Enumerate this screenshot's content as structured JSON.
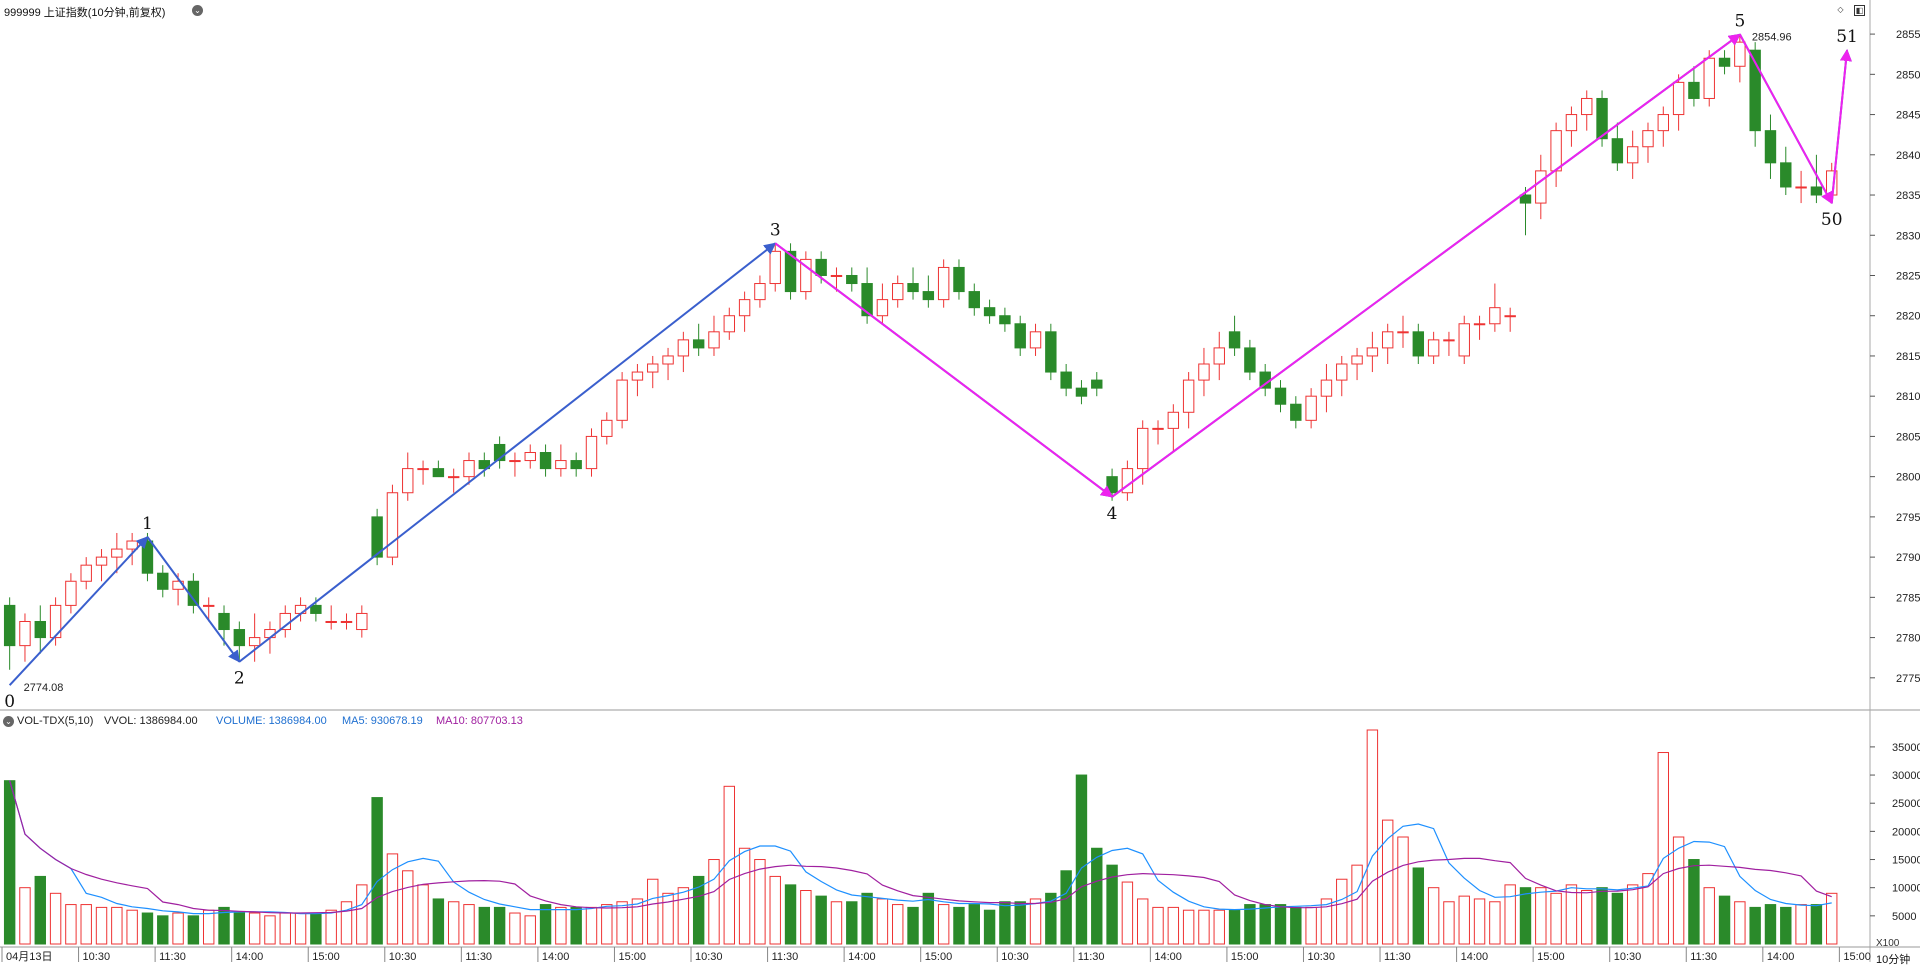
{
  "header": {
    "title": "999999 上证指数(10分钟,前复权)",
    "vol_indicator": "VOL-TDX(5,10)",
    "vvol": "VVOL: 1386984.00",
    "volume": "VOLUME: 1386984.00",
    "ma5": "MA5: 930678.19",
    "ma10": "MA10: 807703.13"
  },
  "footer": {
    "period": "10分钟",
    "unit": "X100"
  },
  "colors": {
    "up": "#ee3333",
    "down": "#2a8a2a",
    "blue_line": "#3a5fcd",
    "magenta_line": "#ee22ee",
    "ma5": "#1e90ff",
    "ma10": "#a020a0"
  },
  "chart_data": [
    {
      "type": "candlestick",
      "title": "999999 上证指数(10分钟,前复权)",
      "ylim": [
        2771,
        2857
      ],
      "yticks": [
        2775,
        2780,
        2785,
        2790,
        2795,
        2800,
        2805,
        2810,
        2815,
        2820,
        2825,
        2830,
        2835,
        2840,
        2845,
        2850,
        2855
      ],
      "xticks": [
        {
          "i": 0,
          "label": "04月13日"
        },
        {
          "i": 5,
          "label": "10:30"
        },
        {
          "i": 10,
          "label": "11:30"
        },
        {
          "i": 15,
          "label": "14:00"
        },
        {
          "i": 20,
          "label": "15:00"
        },
        {
          "i": 25,
          "label": "10:30"
        },
        {
          "i": 30,
          "label": "11:30"
        },
        {
          "i": 35,
          "label": "14:00"
        },
        {
          "i": 40,
          "label": "15:00"
        },
        {
          "i": 45,
          "label": "10:30"
        },
        {
          "i": 50,
          "label": "11:30"
        },
        {
          "i": 55,
          "label": "14:00"
        },
        {
          "i": 60,
          "label": "15:00"
        },
        {
          "i": 65,
          "label": "10:30"
        },
        {
          "i": 70,
          "label": "11:30"
        },
        {
          "i": 75,
          "label": "14:00"
        },
        {
          "i": 80,
          "label": "15:00"
        },
        {
          "i": 85,
          "label": "10:30"
        },
        {
          "i": 90,
          "label": "11:30"
        },
        {
          "i": 95,
          "label": "14:00"
        },
        {
          "i": 100,
          "label": "15:00"
        },
        {
          "i": 105,
          "label": "10:30"
        },
        {
          "i": 110,
          "label": "11:30"
        },
        {
          "i": 115,
          "label": "14:00"
        },
        {
          "i": 120,
          "label": "15:00"
        }
      ],
      "x_count": 120,
      "ohlc": [
        [
          2784,
          2785,
          2776,
          2779
        ],
        [
          2779,
          2783,
          2777,
          2782
        ],
        [
          2782,
          2784,
          2778,
          2780
        ],
        [
          2780,
          2785,
          2779,
          2784
        ],
        [
          2784,
          2788,
          2783,
          2787
        ],
        [
          2787,
          2790,
          2786,
          2789
        ],
        [
          2789,
          2791,
          2787,
          2790
        ],
        [
          2790,
          2793,
          2788,
          2791
        ],
        [
          2791,
          2793,
          2789,
          2792
        ],
        [
          2792,
          2793,
          2787,
          2788
        ],
        [
          2788,
          2789,
          2785,
          2786
        ],
        [
          2786,
          2788,
          2784,
          2787
        ],
        [
          2787,
          2788,
          2783,
          2784
        ],
        [
          2784,
          2785,
          2782,
          2784
        ],
        [
          2783,
          2784,
          2779,
          2781
        ],
        [
          2781,
          2782,
          2777,
          2779
        ],
        [
          2779,
          2783,
          2777,
          2780
        ],
        [
          2780,
          2782,
          2778,
          2781
        ],
        [
          2781,
          2784,
          2780,
          2783
        ],
        [
          2783,
          2785,
          2782,
          2784
        ],
        [
          2784,
          2785,
          2782,
          2783
        ],
        [
          2782,
          2784,
          2781,
          2782
        ],
        [
          2782,
          2783,
          2781,
          2782
        ],
        [
          2781,
          2784,
          2780,
          2783
        ],
        [
          2795,
          2796,
          2789,
          2790
        ],
        [
          2790,
          2799,
          2789,
          2798
        ],
        [
          2798,
          2803,
          2797,
          2801
        ],
        [
          2801,
          2802,
          2799,
          2801
        ],
        [
          2801,
          2802,
          2800,
          2800
        ],
        [
          2800,
          2801,
          2798,
          2800
        ],
        [
          2800,
          2803,
          2799,
          2802
        ],
        [
          2802,
          2803,
          2800,
          2801
        ],
        [
          2804,
          2805,
          2801,
          2802
        ],
        [
          2802,
          2803,
          2800,
          2802
        ],
        [
          2802,
          2804,
          2801,
          2803
        ],
        [
          2803,
          2804,
          2800,
          2801
        ],
        [
          2801,
          2804,
          2800,
          2802
        ],
        [
          2802,
          2803,
          2800,
          2801
        ],
        [
          2801,
          2806,
          2800,
          2805
        ],
        [
          2805,
          2808,
          2804,
          2807
        ],
        [
          2807,
          2813,
          2806,
          2812
        ],
        [
          2812,
          2814,
          2810,
          2813
        ],
        [
          2813,
          2815,
          2811,
          2814
        ],
        [
          2814,
          2816,
          2812,
          2815
        ],
        [
          2815,
          2818,
          2813,
          2817
        ],
        [
          2817,
          2819,
          2815,
          2816
        ],
        [
          2816,
          2820,
          2815,
          2818
        ],
        [
          2818,
          2821,
          2817,
          2820
        ],
        [
          2820,
          2823,
          2818,
          2822
        ],
        [
          2822,
          2825,
          2821,
          2824
        ],
        [
          2824,
          2829,
          2823,
          2828
        ],
        [
          2828,
          2829,
          2822,
          2823
        ],
        [
          2823,
          2828,
          2822,
          2827
        ],
        [
          2827,
          2828,
          2824,
          2825
        ],
        [
          2825,
          2826,
          2823,
          2825
        ],
        [
          2825,
          2826,
          2823,
          2824
        ],
        [
          2824,
          2826,
          2819,
          2820
        ],
        [
          2820,
          2824,
          2819,
          2822
        ],
        [
          2822,
          2825,
          2821,
          2824
        ],
        [
          2824,
          2826,
          2822,
          2823
        ],
        [
          2823,
          2825,
          2821,
          2822
        ],
        [
          2822,
          2827,
          2821,
          2826
        ],
        [
          2826,
          2827,
          2822,
          2823
        ],
        [
          2823,
          2824,
          2820,
          2821
        ],
        [
          2821,
          2822,
          2819,
          2820
        ],
        [
          2820,
          2821,
          2818,
          2819
        ],
        [
          2819,
          2820,
          2815,
          2816
        ],
        [
          2816,
          2819,
          2815,
          2818
        ],
        [
          2818,
          2819,
          2812,
          2813
        ],
        [
          2813,
          2814,
          2810,
          2811
        ],
        [
          2811,
          2812,
          2809,
          2810
        ],
        [
          2812,
          2813,
          2810,
          2811
        ],
        [
          2800,
          2801,
          2797,
          2798
        ],
        [
          2798,
          2802,
          2797,
          2801
        ],
        [
          2801,
          2807,
          2799,
          2806
        ],
        [
          2806,
          2807,
          2804,
          2806
        ],
        [
          2806,
          2809,
          2803,
          2808
        ],
        [
          2808,
          2813,
          2806,
          2812
        ],
        [
          2812,
          2816,
          2810,
          2814
        ],
        [
          2814,
          2818,
          2812,
          2816
        ],
        [
          2818,
          2820,
          2815,
          2816
        ],
        [
          2816,
          2817,
          2812,
          2813
        ],
        [
          2813,
          2814,
          2810,
          2811
        ],
        [
          2811,
          2812,
          2808,
          2809
        ],
        [
          2809,
          2810,
          2806,
          2807
        ],
        [
          2807,
          2811,
          2806,
          2810
        ],
        [
          2810,
          2814,
          2808,
          2812
        ],
        [
          2812,
          2815,
          2810,
          2814
        ],
        [
          2814,
          2816,
          2812,
          2815
        ],
        [
          2815,
          2818,
          2813,
          2816
        ],
        [
          2816,
          2819,
          2814,
          2818
        ],
        [
          2818,
          2820,
          2816,
          2818
        ],
        [
          2818,
          2819,
          2814,
          2815
        ],
        [
          2815,
          2818,
          2814,
          2817
        ],
        [
          2817,
          2818,
          2815,
          2817
        ],
        [
          2815,
          2820,
          2814,
          2819
        ],
        [
          2819,
          2820,
          2817,
          2819
        ],
        [
          2819,
          2824,
          2818,
          2821
        ],
        [
          2820,
          2821,
          2818,
          2820
        ],
        [
          2835,
          2836,
          2830,
          2834
        ],
        [
          2834,
          2840,
          2832,
          2838
        ],
        [
          2838,
          2844,
          2836,
          2843
        ],
        [
          2843,
          2846,
          2841,
          2845
        ],
        [
          2845,
          2848,
          2843,
          2847
        ],
        [
          2847,
          2848,
          2841,
          2842
        ],
        [
          2842,
          2844,
          2838,
          2839
        ],
        [
          2839,
          2843,
          2837,
          2841
        ],
        [
          2841,
          2844,
          2839,
          2843
        ],
        [
          2843,
          2846,
          2841,
          2845
        ],
        [
          2845,
          2850,
          2843,
          2849
        ],
        [
          2849,
          2851,
          2846,
          2847
        ],
        [
          2847,
          2853,
          2846,
          2852
        ],
        [
          2852,
          2853,
          2850,
          2851
        ],
        [
          2851,
          2855,
          2849,
          2854
        ],
        [
          2853,
          2854,
          2841,
          2843
        ],
        [
          2843,
          2845,
          2837,
          2839
        ],
        [
          2839,
          2841,
          2835,
          2836
        ],
        [
          2836,
          2838,
          2834,
          2836
        ],
        [
          2836,
          2840,
          2834,
          2835
        ],
        [
          2835,
          2839,
          2834,
          2838
        ]
      ],
      "annotations": [
        {
          "label": "0",
          "i": 0,
          "price": 2774.08
        },
        {
          "label": "1",
          "i": 9,
          "price": 2792.5
        },
        {
          "label": "2",
          "i": 15,
          "price": 2777
        },
        {
          "label": "3",
          "i": 50,
          "price": 2829
        },
        {
          "label": "4",
          "i": 72,
          "price": 2797.5
        },
        {
          "label": "5",
          "i": 113,
          "price": 2854.96
        },
        {
          "label": "50",
          "i": 119,
          "price": 2834
        },
        {
          "label": "51",
          "i": 120,
          "price": 2853
        }
      ],
      "price_labels": [
        "2774.08",
        "2854.96"
      ]
    },
    {
      "type": "bar",
      "title": "VOL-TDX(5,10)",
      "ylim": [
        0,
        38000
      ],
      "yticks": [
        5000,
        10000,
        15000,
        20000,
        25000,
        30000,
        35000
      ],
      "unit": "X100",
      "volumes": [
        29000,
        10000,
        12000,
        9000,
        7000,
        7000,
        6500,
        6500,
        6000,
        5500,
        5000,
        5500,
        5000,
        6000,
        6500,
        5500,
        5500,
        5000,
        5500,
        5500,
        5500,
        6000,
        7500,
        10500,
        26000,
        16000,
        13000,
        10500,
        8000,
        7500,
        7000,
        6500,
        6500,
        5500,
        5000,
        7000,
        6500,
        6500,
        6500,
        7000,
        7500,
        8000,
        11500,
        9000,
        10000,
        12000,
        15000,
        28000,
        17000,
        15000,
        12000,
        10500,
        9500,
        8500,
        7500,
        7500,
        9000,
        8000,
        7000,
        6500,
        9000,
        7000,
        6500,
        7000,
        6000,
        7500,
        7500,
        8000,
        9000,
        13000,
        30000,
        17000,
        14000,
        11000,
        8000,
        6500,
        6500,
        6000,
        6000,
        6000,
        6000,
        7000,
        7000,
        7000,
        6500,
        6500,
        8000,
        11500,
        14000,
        38000,
        22000,
        19000,
        13500,
        10000,
        7500,
        8500,
        8000,
        7500,
        10500,
        10000,
        10000,
        9000,
        10500,
        9500,
        10000,
        9000,
        10500,
        12500,
        34000,
        19000,
        15000,
        10000,
        8500,
        7500,
        6500,
        7000,
        6500,
        7000,
        7000,
        9000
      ],
      "ma5_label": "MA5: 930678.19",
      "ma10_label": "MA10: 807703.13"
    }
  ]
}
